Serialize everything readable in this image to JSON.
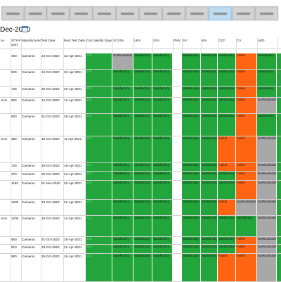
{
  "toolbar": {
    "buttons": [
      {
        "id": "b1",
        "active": false
      },
      {
        "id": "b2",
        "active": false
      },
      {
        "id": "b3",
        "active": false
      },
      {
        "id": "b4",
        "active": false
      },
      {
        "id": "b5",
        "active": false
      },
      {
        "id": "b6",
        "active": false
      },
      {
        "id": "b7",
        "active": false
      },
      {
        "id": "b8",
        "active": false
      },
      {
        "id": "b9",
        "active": false
      },
      {
        "id": "b10",
        "active": true
      },
      {
        "id": "b11",
        "active": false
      },
      {
        "id": "b12",
        "active": false
      }
    ]
  },
  "filter": {
    "date_value": "Dec-2020"
  },
  "columns": [
    "ce",
    "SITHP (psi)",
    "Manufacturer",
    "Test Date",
    "Next Test Date",
    "Cert Validity Days",
    "SCSSV",
    "LMV",
    "SSV",
    "PMV",
    "SV",
    "WV",
    "GCF",
    "CV",
    "AED",
    ""
  ],
  "status_labels": {
    "S": "Satisfactory",
    "F": "Failed",
    "N": "NotRealizable",
    "E": ""
  },
  "rows": [
    {
      "c0": "",
      "c1": "400",
      "c2": "Cameron",
      "c3": "24-Oct-2020",
      "c4": "22-Apr-2021",
      "c5": "135",
      "st": [
        "N",
        "S",
        "S",
        "E",
        "S",
        "S",
        "S",
        "F",
        "S"
      ]
    },
    {
      "c0": "",
      "c1": "500",
      "c2": "Cameron",
      "c3": "24-Oct-2020",
      "c4": "22-Apr-2021",
      "c5": "135",
      "st": [
        "S",
        "S",
        "S",
        "E",
        "S",
        "S",
        "S",
        "F",
        "S"
      ]
    },
    {
      "c0": "",
      "c1": "740",
      "c2": "Cameron",
      "c3": "25-Oct-2020",
      "c4": "23-Apr-2021",
      "c5": "136",
      "st": [
        "S",
        "S",
        "S",
        "E",
        "S",
        "S",
        "S",
        "F",
        "S"
      ]
    },
    {
      "c0": "ut-In",
      "c1": "950",
      "c2": "Cameron",
      "c3": "14-Oct-2020",
      "c4": "12-Apr-2021",
      "c5": "125",
      "st": [
        "S",
        "S",
        "S",
        "E",
        "S",
        "S",
        "S",
        "F",
        "N"
      ]
    },
    {
      "c0": "",
      "c1": "800",
      "c2": "Cameron",
      "c3": "31-Oct-2020",
      "c4": "29-Apr-2021",
      "c5": "142",
      "st": [
        "S",
        "S",
        "S",
        "E",
        "S",
        "S",
        "S",
        "F",
        "S"
      ]
    },
    {
      "c0": "ut-In",
      "c1": "380",
      "c2": "Cameron",
      "c3": "13-Oct-2020",
      "c4": "11-Apr-2021",
      "c5": "124",
      "st": [
        "S",
        "S",
        "S",
        "E",
        "S",
        "S",
        "F",
        "F",
        "N"
      ]
    },
    {
      "c0": "",
      "c1": "730",
      "c2": "Cameron",
      "c3": "20-Oct-2020",
      "c4": "18-Apr-2021",
      "c5": "131",
      "st": [
        "S",
        "S",
        "S",
        "E",
        "S",
        "S",
        "F",
        "F",
        "N"
      ]
    },
    {
      "c0": "",
      "c1": "470",
      "c2": "Cameron",
      "c3": "26-Oct-2020",
      "c4": "24-Apr-2021",
      "c5": "137",
      "st": [
        "S",
        "S",
        "S",
        "E",
        "S",
        "S",
        "S",
        "F",
        "N"
      ]
    },
    {
      "c0": "",
      "c1": "1150",
      "c2": "Cameron",
      "c3": "01-Nov-2020",
      "c4": "30-Apr-2021",
      "c5": "143",
      "st": [
        "S",
        "S",
        "S",
        "E",
        "S",
        "S",
        "S",
        "F",
        "N"
      ]
    },
    {
      "c0": "",
      "c1": "1000",
      "c2": "Cameron",
      "c3": "23-Oct-2020",
      "c4": "21-Apr-2021",
      "c5": "134",
      "st": [
        "S",
        "S",
        "S",
        "E",
        "S",
        "S",
        "F",
        "N",
        "N"
      ]
    },
    {
      "c0": "ut-In",
      "c1": "1200",
      "c2": "Cameron",
      "c3": "16-Oct-2020",
      "c4": "14-Apr-2021",
      "c5": "127",
      "st": [
        "S",
        "S",
        "S",
        "E",
        "S",
        "S",
        "S",
        "S",
        "N"
      ]
    },
    {
      "c0": "",
      "c1": "850",
      "c2": "Cameron",
      "c3": "31-Oct-2020",
      "c4": "29-Apr-2021",
      "c5": "142",
      "st": [
        "S",
        "S",
        "S",
        "E",
        "S",
        "S",
        "S",
        "F",
        "N"
      ]
    },
    {
      "c0": "",
      "c1": "510",
      "c2": "Cameron",
      "c3": "23-Oct-2020",
      "c4": "21-Apr-2021",
      "c5": "134",
      "st": [
        "S",
        "S",
        "S",
        "E",
        "S",
        "S",
        "S",
        "F",
        "N"
      ]
    },
    {
      "c0": "",
      "c1": "980",
      "c2": "Cameron",
      "c3": "20-Oct-2020",
      "c4": "18-Apr-2021",
      "c5": "131",
      "st": [
        "S",
        "S",
        "S",
        "E",
        "S",
        "S",
        "F",
        "F",
        "N"
      ]
    }
  ]
}
